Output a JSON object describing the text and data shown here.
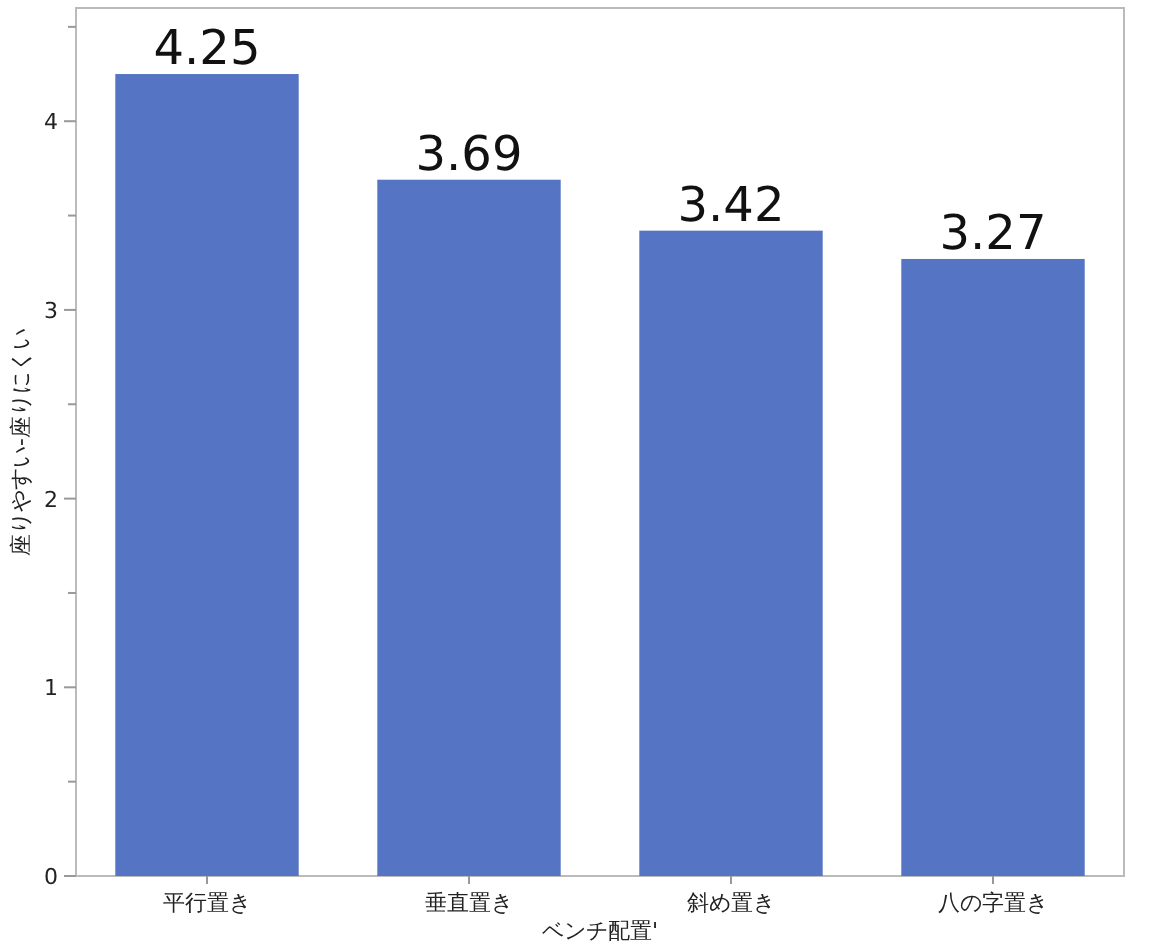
{
  "chart_data": {
    "type": "bar",
    "xlabel": "ベンチ配置'",
    "ylabel": "座りやすい-座りにくい",
    "categories": [
      "平行置き",
      "垂直置き",
      "斜め置き",
      "八の字置き"
    ],
    "values": [
      4.25,
      3.69,
      3.42,
      3.27
    ],
    "color": "#5574c4",
    "data_labels": true,
    "ylim": [
      0,
      4.6
    ],
    "yticks": [
      0,
      {
        "value": 0.5,
        "label": null
      },
      1,
      {
        "value": 1.5,
        "label": null
      },
      2,
      {
        "value": 2.5,
        "label": null
      },
      3,
      {
        "value": 3.5,
        "label": null
      },
      4,
      {
        "value": 4.5,
        "label": null
      }
    ],
    "grid": false
  }
}
